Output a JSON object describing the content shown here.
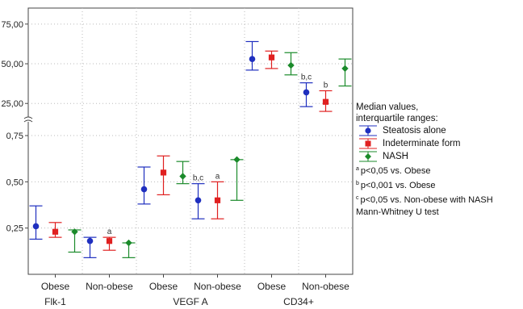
{
  "chart_data": {
    "type": "scatter",
    "subtype": "median-with-iqr-error-bars",
    "y_scale": "broken",
    "y_segments": [
      {
        "range": [
          18,
          80
        ],
        "ticks": [
          "25,00",
          "50,00",
          "75,00"
        ],
        "tick_values": [
          25,
          50,
          75
        ]
      },
      {
        "range": [
          0,
          0.82
        ],
        "ticks": [
          "0,25",
          "0,50",
          "0,75"
        ],
        "tick_values": [
          0.25,
          0.5,
          0.75
        ]
      }
    ],
    "groups": [
      {
        "label": "Flk-1",
        "categories": [
          "Obese",
          "Non-obese"
        ]
      },
      {
        "label": "VEGF A",
        "categories": [
          "Obese",
          "Non-obese"
        ]
      },
      {
        "label": "CD34+",
        "categories": [
          "Obese",
          "Non-obese"
        ]
      }
    ],
    "series": [
      {
        "name": "Steatosis alone",
        "color": "#1f2fbf",
        "marker": "circle",
        "points": [
          {
            "group": 0,
            "cat": 0,
            "median": 0.26,
            "q1": 0.19,
            "q3": 0.37
          },
          {
            "group": 0,
            "cat": 1,
            "median": 0.18,
            "q1": 0.09,
            "q3": 0.2
          },
          {
            "group": 1,
            "cat": 0,
            "median": 0.46,
            "q1": 0.38,
            "q3": 0.58
          },
          {
            "group": 1,
            "cat": 1,
            "median": 0.4,
            "q1": 0.3,
            "q3": 0.49,
            "label": "b,c"
          },
          {
            "group": 2,
            "cat": 0,
            "median": 53,
            "q1": 46,
            "q3": 64
          },
          {
            "group": 2,
            "cat": 1,
            "median": 32,
            "q1": 23,
            "q3": 38,
            "label": "b,c"
          }
        ]
      },
      {
        "name": "Indeterminate form",
        "color": "#e02020",
        "marker": "square",
        "points": [
          {
            "group": 0,
            "cat": 0,
            "median": 0.23,
            "q1": 0.2,
            "q3": 0.28
          },
          {
            "group": 0,
            "cat": 1,
            "median": 0.18,
            "q1": 0.13,
            "q3": 0.2,
            "label": "a"
          },
          {
            "group": 1,
            "cat": 0,
            "median": 0.55,
            "q1": 0.43,
            "q3": 0.64
          },
          {
            "group": 1,
            "cat": 1,
            "median": 0.4,
            "q1": 0.3,
            "q3": 0.5,
            "label": "a"
          },
          {
            "group": 2,
            "cat": 0,
            "median": 54,
            "q1": 47,
            "q3": 58
          },
          {
            "group": 2,
            "cat": 1,
            "median": 26,
            "q1": 20,
            "q3": 33,
            "label": "b"
          }
        ]
      },
      {
        "name": "NASH",
        "color": "#1a8a2a",
        "marker": "diamond",
        "points": [
          {
            "group": 0,
            "cat": 0,
            "median": 0.23,
            "q1": 0.12,
            "q3": 0.24
          },
          {
            "group": 0,
            "cat": 1,
            "median": 0.17,
            "q1": 0.09,
            "q3": 0.17
          },
          {
            "group": 1,
            "cat": 0,
            "median": 0.53,
            "q1": 0.49,
            "q3": 0.61
          },
          {
            "group": 1,
            "cat": 1,
            "median": 0.62,
            "q1": 0.4,
            "q3": 0.62
          },
          {
            "group": 2,
            "cat": 0,
            "median": 49,
            "q1": 43,
            "q3": 57
          },
          {
            "group": 2,
            "cat": 1,
            "median": 47,
            "q1": 36,
            "q3": 53
          }
        ]
      }
    ],
    "legend": {
      "placement": "right",
      "title_lines": [
        "Median values,",
        "interquartile ranges:"
      ],
      "notes": [
        {
          "sup": "a",
          "text": "p<0,05 vs. Obese"
        },
        {
          "sup": "b",
          "text": "p<0,001 vs. Obese"
        },
        {
          "sup": "c",
          "text": "p<0,05 vs. Non-obese with NASH"
        }
      ],
      "test": "Mann-Whitney U test"
    }
  }
}
